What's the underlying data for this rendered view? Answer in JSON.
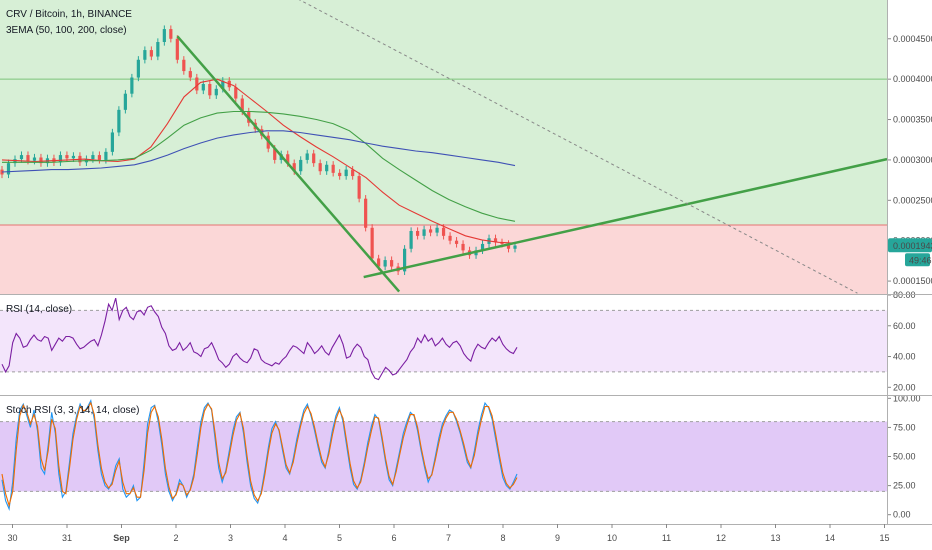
{
  "chart_data": [
    {
      "type": "candlestick",
      "title": "CRV / Bitcoin, 1h, BINANCE",
      "indicator_label": "3EMA (50, 100, 200, close)",
      "y_ticks": [
        "0.0004500",
        "0.0004000",
        "0.0003500",
        "0.0003000",
        "0.0002500",
        "0.0002000",
        "0.0001500"
      ],
      "y_tick_values": [
        0.00045,
        0.0004,
        0.00035,
        0.0003,
        0.00025,
        0.0002,
        0.00015
      ],
      "ylim": [
        0.000134,
        0.000498
      ],
      "last_price_label": "0.0001943",
      "last_price": 0.0001943,
      "countdown_label": "49:46",
      "zones": [
        {
          "name": "resistance",
          "from": 0.0001943,
          "to": 0.000498,
          "color": "#d7efd6"
        },
        {
          "name": "support",
          "from": 0.000134,
          "to": 0.0002195,
          "color": "#fbd7d7"
        }
      ],
      "horizontal_lines": [
        0.0004,
        0.0002195
      ],
      "ema_series": [
        {
          "color": "#e53935",
          "values": [
            0.0003,
            0.000299,
            0.000298,
            0.000299,
            0.0003,
            0.000301,
            0.000299,
            0.000298,
            0.000301,
            0.000316,
            0.000345,
            0.000378,
            0.000396,
            0.0004,
            0.000392,
            0.000376,
            0.00036,
            0.000343,
            0.000329,
            0.000316,
            0.000304,
            0.000291,
            0.000278,
            0.00026,
            0.000244,
            0.000234,
            0.000224,
            0.000215,
            0.000206,
            0.000201,
            0.000198,
            0.000197
          ]
        },
        {
          "color": "#43a047",
          "values": [
            0.000297,
            0.000297,
            0.000297,
            0.000297,
            0.000298,
            0.000299,
            0.000299,
            0.0003,
            0.000302,
            0.000312,
            0.000327,
            0.000343,
            0.000352,
            0.000358,
            0.00036,
            0.00036,
            0.000359,
            0.000357,
            0.000354,
            0.00035,
            0.000345,
            0.000336,
            0.00032,
            0.000302,
            0.000288,
            0.000275,
            0.000262,
            0.000251,
            0.000242,
            0.000234,
            0.000228,
            0.000224
          ]
        },
        {
          "color": "#3f51b5",
          "values": [
            0.000285,
            0.000286,
            0.000287,
            0.000288,
            0.000288,
            0.000289,
            0.00029,
            0.000292,
            0.000294,
            0.000299,
            0.000306,
            0.000314,
            0.000321,
            0.000327,
            0.000331,
            0.000334,
            0.000336,
            0.000336,
            0.000334,
            0.000331,
            0.000328,
            0.000325,
            0.000321,
            0.000317,
            0.000314,
            0.000311,
            0.000309,
            0.000306,
            0.000303,
            0.0003,
            0.000297,
            0.000293
          ]
        }
      ],
      "candles": [
        [
          0.000288,
          0.000282
        ],
        [
          0.000282,
          0.000296
        ],
        [
          0.000296,
          0.000301
        ],
        [
          0.000301,
          0.000306
        ],
        [
          0.000306,
          0.000299
        ],
        [
          0.000299,
          0.000303
        ],
        [
          0.000303,
          0.000296
        ],
        [
          0.000296,
          0.000302
        ],
        [
          0.000302,
          0.000297
        ],
        [
          0.000297,
          0.000306
        ],
        [
          0.000306,
          0.000302
        ],
        [
          0.000302,
          0.000305
        ],
        [
          0.000305,
          0.000297
        ],
        [
          0.000297,
          0.000301
        ],
        [
          0.000301,
          0.000306
        ],
        [
          0.000306,
          0.0003
        ],
        [
          0.0003,
          0.00031
        ],
        [
          0.00031,
          0.000334
        ],
        [
          0.000334,
          0.000362
        ],
        [
          0.000362,
          0.000382
        ],
        [
          0.000382,
          0.000402
        ],
        [
          0.000402,
          0.000424
        ],
        [
          0.000424,
          0.000436
        ],
        [
          0.000436,
          0.000428
        ],
        [
          0.000428,
          0.000446
        ],
        [
          0.000446,
          0.000462
        ],
        [
          0.000462,
          0.00045
        ],
        [
          0.00045,
          0.000424
        ],
        [
          0.000424,
          0.00041
        ],
        [
          0.00041,
          0.000402
        ],
        [
          0.000402,
          0.000386
        ],
        [
          0.000386,
          0.000394
        ],
        [
          0.000394,
          0.00038
        ],
        [
          0.00038,
          0.000388
        ],
        [
          0.000388,
          0.000398
        ],
        [
          0.000398,
          0.00039
        ],
        [
          0.00039,
          0.000376
        ],
        [
          0.000376,
          0.00036
        ],
        [
          0.00036,
          0.000346
        ],
        [
          0.000346,
          0.000338
        ],
        [
          0.000338,
          0.00033
        ],
        [
          0.00033,
          0.000314
        ],
        [
          0.000314,
          0.0003
        ],
        [
          0.0003,
          0.000307
        ],
        [
          0.000307,
          0.000296
        ],
        [
          0.000296,
          0.000286
        ],
        [
          0.000286,
          0.0003
        ],
        [
          0.0003,
          0.000308
        ],
        [
          0.000308,
          0.000296
        ],
        [
          0.000296,
          0.000286
        ],
        [
          0.000286,
          0.000294
        ],
        [
          0.000294,
          0.000284
        ],
        [
          0.000284,
          0.00028
        ],
        [
          0.00028,
          0.000288
        ],
        [
          0.000288,
          0.00028
        ],
        [
          0.00028,
          0.000252
        ],
        [
          0.000252,
          0.000216
        ],
        [
          0.000216,
          0.000178
        ],
        [
          0.000178,
          0.000168
        ],
        [
          0.000168,
          0.000176
        ],
        [
          0.000176,
          0.000168
        ],
        [
          0.000168,
          0.000162
        ],
        [
          0.000162,
          0.00019
        ],
        [
          0.00019,
          0.000212
        ],
        [
          0.000212,
          0.000206
        ],
        [
          0.000206,
          0.000214
        ],
        [
          0.000214,
          0.00021
        ],
        [
          0.00021,
          0.000216
        ],
        [
          0.000216,
          0.000206
        ],
        [
          0.000206,
          0.0002
        ],
        [
          0.0002,
          0.000196
        ],
        [
          0.000196,
          0.000188
        ],
        [
          0.000188,
          0.000182
        ],
        [
          0.000182,
          0.000188
        ],
        [
          0.000188,
          0.000196
        ],
        [
          0.000196,
          0.000203
        ],
        [
          0.000203,
          0.000198
        ],
        [
          0.000198,
          0.000196
        ],
        [
          0.000196,
          0.00019
        ],
        [
          0.00019,
          0.000194
        ]
      ],
      "trendlines": [
        {
          "from": [
            0.6,
            0.000453
          ],
          "to": [
            1.35,
            0.000137
          ],
          "color": "#43a047",
          "style": "solid"
        },
        {
          "from": [
            1.23,
            0.000155
          ],
          "to": [
            3.0,
            0.000301
          ],
          "color": "#43a047",
          "style": "solid"
        },
        {
          "from": [
            0.9,
            0.00052
          ],
          "to": [
            2.9,
            0.000135
          ],
          "color": "#888888",
          "style": "dashed"
        }
      ]
    },
    {
      "type": "line",
      "title": "RSI (14, close)",
      "y_ticks": [
        "80.00",
        "60.00",
        "40.00",
        "20.00"
      ],
      "y_tick_values": [
        80,
        60,
        40,
        20
      ],
      "ylim": [
        15,
        80
      ],
      "band": [
        30,
        70
      ],
      "color": "#7b1fa2",
      "values": [
        35,
        30,
        34,
        49,
        55,
        52,
        46,
        47,
        51,
        54,
        51,
        50,
        53,
        52,
        44,
        48,
        52,
        50,
        53,
        53,
        52,
        48,
        45,
        46,
        48,
        50,
        51,
        47,
        54,
        63,
        74,
        70,
        78,
        64,
        70,
        72,
        66,
        64,
        69,
        70,
        67,
        72,
        73,
        69,
        66,
        59,
        55,
        47,
        44,
        45,
        49,
        44,
        46,
        49,
        43,
        42,
        40,
        45,
        46,
        49,
        44,
        38,
        36,
        33,
        35,
        40,
        42,
        39,
        37,
        36,
        39,
        45,
        44,
        38,
        36,
        35,
        34,
        36,
        35,
        38,
        40,
        44,
        47,
        46,
        44,
        42,
        49,
        46,
        42,
        44,
        47,
        43,
        41,
        46,
        50,
        54,
        48,
        39,
        40,
        45,
        48,
        46,
        40,
        38,
        30,
        26,
        25,
        29,
        33,
        31,
        28,
        29,
        32,
        35,
        38,
        43,
        46,
        52,
        49,
        54,
        50,
        52,
        47,
        49,
        52,
        48,
        46,
        49,
        50,
        47,
        42,
        39,
        37,
        44,
        48,
        46,
        45,
        49,
        52,
        50,
        53,
        48,
        45,
        43,
        42,
        46
      ]
    },
    {
      "type": "line",
      "title": "Stoch RSI (3, 3, 14, 14, close)",
      "y_ticks": [
        "100.00",
        "75.00",
        "50.00",
        "25.00",
        "0.00"
      ],
      "y_tick_values": [
        100,
        75,
        50,
        25,
        0
      ],
      "ylim": [
        -8,
        102
      ],
      "band": [
        20,
        80
      ],
      "series": [
        {
          "color": "#2196f3",
          "values": [
            30,
            12,
            5,
            28,
            65,
            90,
            95,
            85,
            75,
            90,
            72,
            40,
            35,
            60,
            88,
            70,
            35,
            15,
            20,
            45,
            70,
            85,
            95,
            88,
            92,
            98,
            82,
            55,
            35,
            25,
            22,
            28,
            42,
            48,
            22,
            15,
            18,
            25,
            12,
            15,
            45,
            78,
            92,
            94,
            80,
            60,
            35,
            20,
            12,
            18,
            30,
            25,
            15,
            22,
            35,
            58,
            80,
            92,
            96,
            90,
            65,
            40,
            28,
            38,
            55,
            72,
            84,
            88,
            70,
            45,
            25,
            14,
            10,
            20,
            38,
            58,
            74,
            80,
            72,
            55,
            40,
            35,
            48,
            65,
            78,
            90,
            95,
            85,
            72,
            58,
            45,
            40,
            55,
            72,
            85,
            92,
            80,
            60,
            40,
            26,
            22,
            30,
            45,
            62,
            76,
            86,
            82,
            64,
            45,
            30,
            25,
            40,
            55,
            70,
            80,
            88,
            85,
            72,
            55,
            40,
            28,
            35,
            50,
            66,
            78,
            85,
            90,
            88,
            80,
            70,
            58,
            45,
            40,
            55,
            72,
            86,
            96,
            92,
            82,
            65,
            48,
            32,
            25,
            22,
            28,
            35
          ]
        },
        {
          "color": "#ef6c00",
          "values": [
            35,
            18,
            8,
            20,
            55,
            85,
            94,
            88,
            78,
            86,
            76,
            48,
            38,
            55,
            82,
            74,
            42,
            20,
            18,
            40,
            65,
            82,
            93,
            89,
            91,
            96,
            86,
            60,
            40,
            28,
            23,
            26,
            38,
            46,
            28,
            18,
            18,
            23,
            15,
            15,
            38,
            70,
            88,
            93,
            84,
            65,
            40,
            24,
            14,
            17,
            27,
            25,
            17,
            21,
            32,
            52,
            75,
            89,
            95,
            91,
            70,
            45,
            31,
            36,
            51,
            68,
            81,
            87,
            74,
            50,
            29,
            17,
            12,
            18,
            34,
            54,
            70,
            78,
            73,
            58,
            43,
            36,
            45,
            61,
            75,
            87,
            93,
            87,
            75,
            61,
            48,
            41,
            52,
            68,
            82,
            90,
            83,
            64,
            44,
            29,
            23,
            28,
            42,
            58,
            72,
            84,
            83,
            67,
            48,
            33,
            26,
            37,
            52,
            66,
            77,
            86,
            86,
            75,
            58,
            43,
            31,
            34,
            47,
            62,
            75,
            83,
            88,
            88,
            82,
            72,
            61,
            48,
            41,
            51,
            68,
            82,
            93,
            93,
            85,
            69,
            52,
            36,
            27,
            23,
            26,
            32
          ]
        }
      ]
    }
  ],
  "x_axis": {
    "labels": [
      "30",
      "31",
      "Sep",
      "2",
      "3",
      "4",
      "5",
      "6",
      "7",
      "8",
      "9",
      "10",
      "11",
      "12",
      "13",
      "14",
      "15"
    ]
  }
}
